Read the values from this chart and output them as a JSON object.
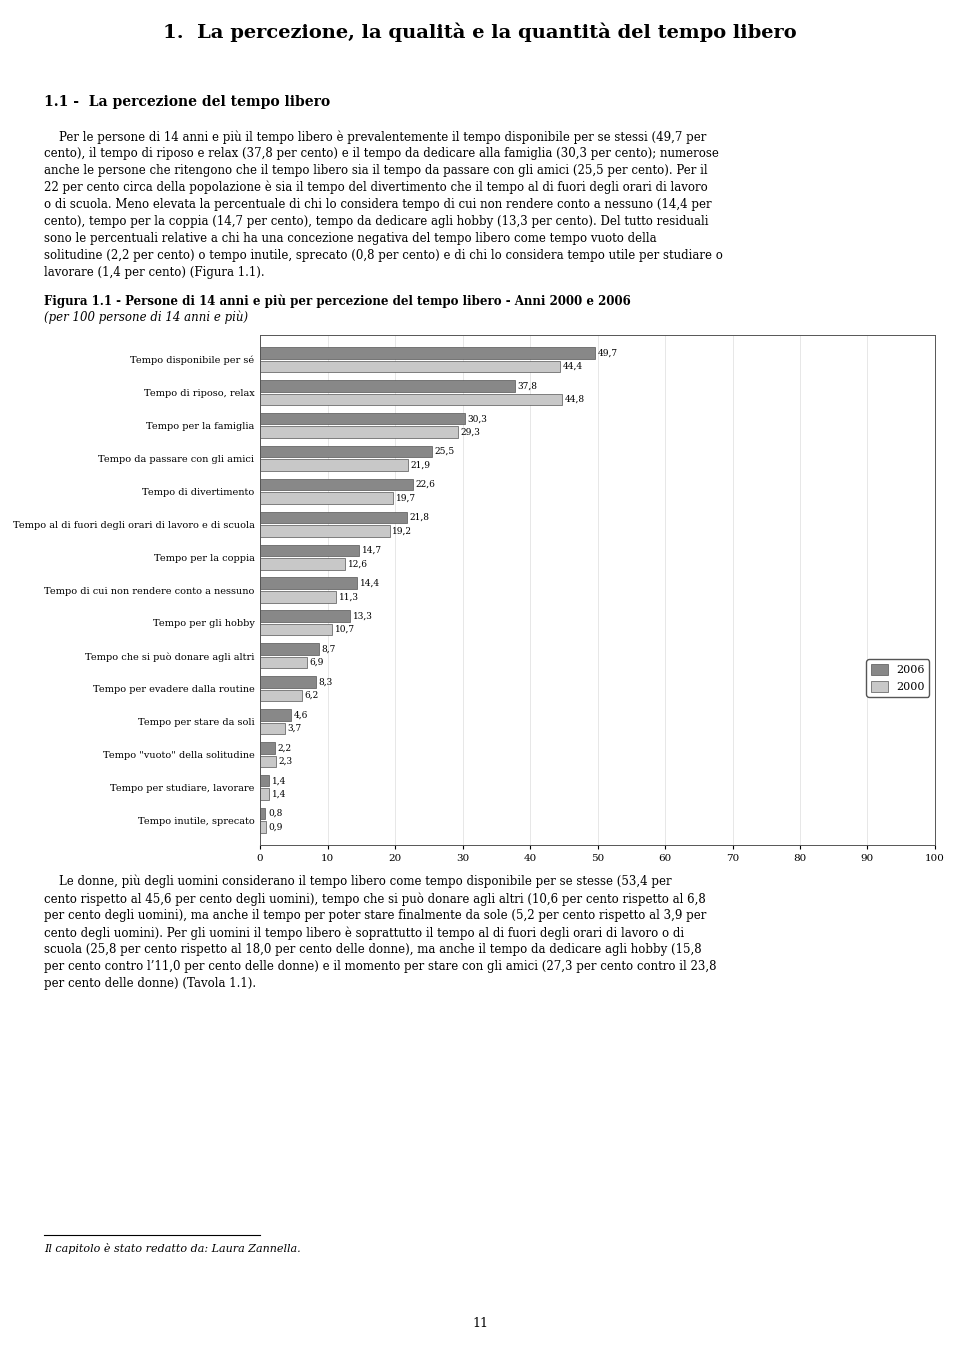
{
  "page_title": "1.  La percezione, la qualità e la quantità del tempo libero",
  "section_title": "1.1 -  La percezione del tempo libero",
  "body_text1_lines": [
    "    Per le persone di 14 anni e più il tempo libero è prevalentemente il tempo disponibile per se stessi (49,7 per",
    "cento), il tempo di riposo e relax (37,8 per cento) e il tempo da dedicare alla famiglia (30,3 per cento); numerose",
    "anche le persone che ritengono che il tempo libero sia il tempo da passare con gli amici (25,5 per cento). Per il",
    "22 per cento circa della popolazione è sia il tempo del divertimento che il tempo al di fuori degli orari di lavoro",
    "o di scuola. Meno elevata la percentuale di chi lo considera tempo di cui non rendere conto a nessuno (14,4 per",
    "cento), tempo per la coppia (14,7 per cento), tempo da dedicare agli hobby (13,3 per cento). Del tutto residuali",
    "sono le percentuali relative a chi ha una concezione negativa del tempo libero come tempo vuoto della",
    "solitudine (2,2 per cento) o tempo inutile, sprecato (0,8 per cento) e di chi lo considera tempo utile per studiare o",
    "lavorare (1,4 per cento) (Figura 1.1)."
  ],
  "figure_caption_bold": "Figura 1.1 - Persone di 14 anni e più per percezione del tempo libero - Anni 2000 e 2006",
  "figure_caption_italic": "(per 100 persone di 14 anni e più)",
  "categories": [
    "Tempo disponibile per sé",
    "Tempo di riposo, relax",
    "Tempo per la famiglia",
    "Tempo da passare con gli amici",
    "Tempo di divertimento",
    "Tempo al di fuori degli orari di lavoro e di scuola",
    "Tempo per la coppia",
    "Tempo di cui non rendere conto a nessuno",
    "Tempo per gli hobby",
    "Tempo che si può donare agli altri",
    "Tempo per evadere dalla routine",
    "Tempo per stare da soli",
    "Tempo \"vuoto\" della solitudine",
    "Tempo per studiare, lavorare",
    "Tempo inutile, sprecato"
  ],
  "values_2006": [
    49.7,
    37.8,
    30.3,
    25.5,
    22.6,
    21.8,
    14.7,
    14.4,
    13.3,
    8.7,
    8.3,
    4.6,
    2.2,
    1.4,
    0.8
  ],
  "values_2000": [
    44.4,
    44.8,
    29.3,
    21.9,
    19.7,
    19.2,
    12.6,
    11.3,
    10.7,
    6.9,
    6.2,
    3.7,
    2.3,
    1.4,
    0.9
  ],
  "color_2006": "#888888",
  "color_2000": "#c8c8c8",
  "xlim": [
    0,
    100
  ],
  "xticks": [
    0,
    10,
    20,
    30,
    40,
    50,
    60,
    70,
    80,
    90,
    100
  ],
  "body_text2_lines": [
    "    Le donne, più degli uomini considerano il tempo libero come tempo disponibile per se stesse (53,4 per",
    "cento rispetto al 45,6 per cento degli uomini), tempo che si può donare agli altri (10,6 per cento rispetto al 6,8",
    "per cento degli uomini), ma anche il tempo per poter stare finalmente da sole (5,2 per cento rispetto al 3,9 per",
    "cento degli uomini). Per gli uomini il tempo libero è soprattutto il tempo al di fuori degli orari di lavoro o di",
    "scuola (25,8 per cento rispetto al 18,0 per cento delle donne), ma anche il tempo da dedicare agli hobby (15,8",
    "per cento contro l’11,0 per cento delle donne) e il momento per stare con gli amici (27,3 per cento contro il 23,8",
    "per cento delle donne) (Tavola 1.1)."
  ],
  "footnote": "Il capitolo è stato redatto da: Laura Zannella.",
  "page_number": "11",
  "background_color": "#ffffff"
}
